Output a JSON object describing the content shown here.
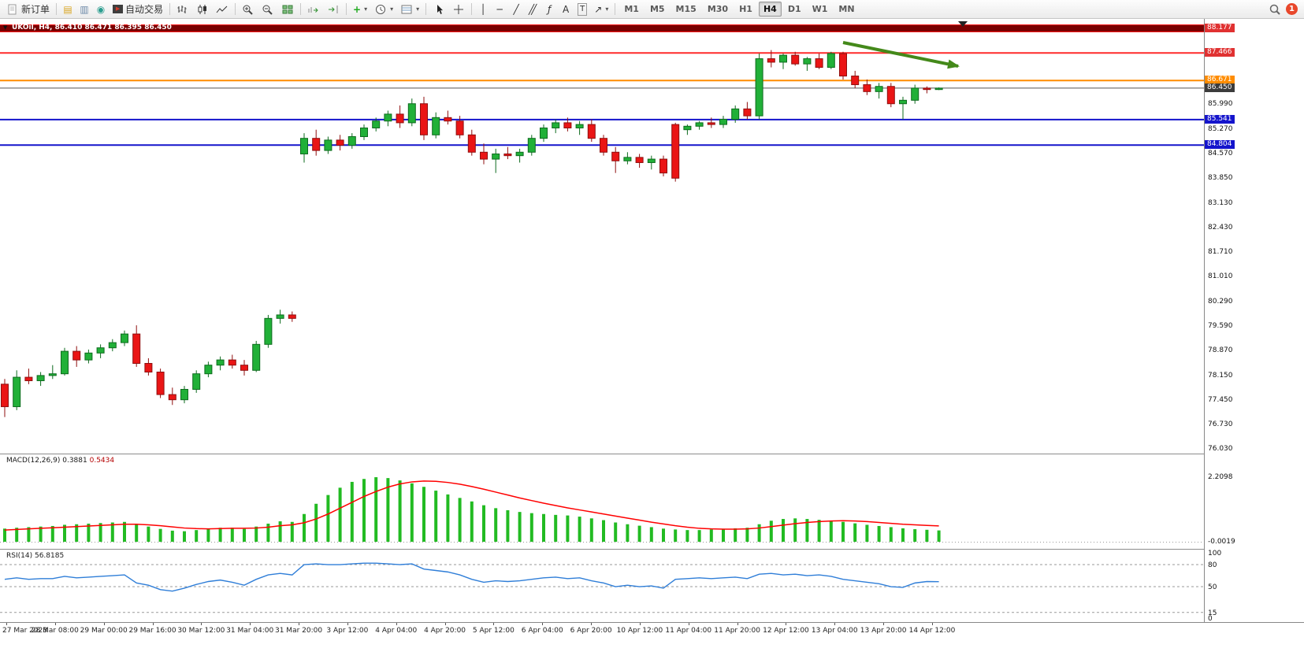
{
  "toolbar": {
    "new_order": "新订单",
    "autotrading": "自动交易",
    "timeframes": [
      "M1",
      "M5",
      "M15",
      "M30",
      "H1",
      "H4",
      "D1",
      "W1",
      "MN"
    ],
    "active_timeframe": "H4",
    "notification_count": "1",
    "icon_glyphs": {
      "market_watch": "▤",
      "navigator": "▥",
      "terminal": "◉",
      "autoplay": "▶",
      "indicator_plus": "+",
      "vline": "│",
      "hline": "─",
      "trendline": "╱",
      "channel": "╱╱",
      "fibonacci": "ƒ",
      "text": "A",
      "label": "T",
      "arrows": "↗",
      "caret": "▾",
      "band_caret": "▼"
    }
  },
  "chart": {
    "title": "UKOil, H4, 86.410 86.471 86.395 86.450",
    "symbol": "UKOil",
    "period": "H4",
    "ohlc": {
      "open": "86.410",
      "high": "86.471",
      "low": "86.395",
      "close": "86.450"
    }
  },
  "macd": {
    "label": "MACD(12,26,9)",
    "main": "0.3881",
    "signal": "0.5434",
    "axis": [
      "2.2098",
      "-0.0019"
    ]
  },
  "rsi": {
    "label": "RSI(14)",
    "value": "56.8185",
    "levels": [
      100,
      80,
      50,
      15,
      0
    ],
    "dashed_levels": [
      80,
      50,
      15
    ]
  },
  "colors": {
    "bull": "#21b038",
    "bull_edge": "#0e6b1e",
    "bear": "#ea1515",
    "bear_edge": "#8f0f0f",
    "macd_hist": "#22bb22",
    "macd_signal": "#ff0000",
    "rsi_line": "#2f7ed8",
    "arrow": "#44891a",
    "band": "#7a0101",
    "band_edge": "#ff1a1a"
  },
  "chart_data": {
    "type": "candlestick",
    "symbol": "UKOil",
    "timeframe": "H4",
    "price_axis_ticks": [
      "85.990",
      "85.270",
      "84.570",
      "83.850",
      "83.130",
      "82.430",
      "81.710",
      "81.010",
      "80.290",
      "79.590",
      "78.870",
      "78.150",
      "77.450",
      "76.730",
      "76.030"
    ],
    "hlines": [
      {
        "price": 88.177,
        "label": "88.177",
        "color": "#b30000",
        "label_bg": "#e03131",
        "style": "band"
      },
      {
        "price": 87.466,
        "label": "87.466",
        "color": "#ff2a2a",
        "label_bg": "#e03131",
        "style": "line"
      },
      {
        "price": 86.671,
        "label": "86.671",
        "color": "#ff8c00",
        "label_bg": "#ff8c00",
        "style": "line"
      },
      {
        "price": 86.45,
        "label": "86.450",
        "color": "#555555",
        "label_bg": "#3c3c3c",
        "style": "thin"
      },
      {
        "price": 85.541,
        "label": "85.541",
        "color": "#1414cc",
        "label_bg": "#1414cc",
        "style": "line"
      },
      {
        "price": 84.804,
        "label": "84.804",
        "color": "#1414cc",
        "label_bg": "#1414cc",
        "style": "line"
      }
    ],
    "time_labels": [
      "27 Mar 2023",
      "28 Mar 08:00",
      "29 Mar 00:00",
      "29 Mar 16:00",
      "30 Mar 12:00",
      "31 Mar 04:00",
      "31 Mar 20:00",
      "3 Apr 12:00",
      "4 Apr 04:00",
      "4 Apr 20:00",
      "5 Apr 12:00",
      "6 Apr 04:00",
      "6 Apr 20:00",
      "10 Apr 12:00",
      "11 Apr 04:00",
      "11 Apr 20:00",
      "12 Apr 12:00",
      "13 Apr 04:00",
      "13 Apr 20:00",
      "14 Apr 12:00"
    ],
    "candles": [
      [
        77.9,
        78.05,
        76.95,
        77.25
      ],
      [
        77.25,
        78.3,
        77.15,
        78.1
      ],
      [
        78.1,
        78.35,
        77.9,
        78.0
      ],
      [
        78.0,
        78.25,
        77.85,
        78.15
      ],
      [
        78.15,
        78.45,
        78.05,
        78.2
      ],
      [
        78.2,
        78.95,
        78.15,
        78.85
      ],
      [
        78.85,
        79.0,
        78.4,
        78.6
      ],
      [
        78.6,
        78.9,
        78.5,
        78.8
      ],
      [
        78.8,
        79.05,
        78.65,
        78.95
      ],
      [
        78.95,
        79.2,
        78.85,
        79.1
      ],
      [
        79.1,
        79.45,
        79.0,
        79.35
      ],
      [
        79.35,
        79.6,
        78.4,
        78.5
      ],
      [
        78.5,
        78.65,
        78.15,
        78.25
      ],
      [
        78.25,
        78.35,
        77.5,
        77.6
      ],
      [
        77.6,
        77.8,
        77.3,
        77.45
      ],
      [
        77.45,
        77.85,
        77.35,
        77.75
      ],
      [
        77.75,
        78.3,
        77.65,
        78.2
      ],
      [
        78.2,
        78.55,
        78.1,
        78.45
      ],
      [
        78.45,
        78.7,
        78.3,
        78.6
      ],
      [
        78.6,
        78.75,
        78.35,
        78.45
      ],
      [
        78.45,
        78.6,
        78.15,
        78.3
      ],
      [
        78.3,
        79.15,
        78.25,
        79.05
      ],
      [
        79.05,
        79.9,
        78.95,
        79.8
      ],
      [
        79.8,
        80.05,
        79.65,
        79.9
      ],
      [
        79.9,
        80.0,
        79.7,
        79.8
      ],
      [
        84.55,
        85.15,
        84.3,
        85.0
      ],
      [
        85.0,
        85.25,
        84.5,
        84.65
      ],
      [
        84.65,
        85.05,
        84.55,
        84.95
      ],
      [
        84.95,
        85.1,
        84.65,
        84.8
      ],
      [
        84.8,
        85.15,
        84.7,
        85.05
      ],
      [
        85.05,
        85.4,
        84.95,
        85.3
      ],
      [
        85.3,
        85.6,
        85.2,
        85.5
      ],
      [
        85.5,
        85.8,
        85.35,
        85.7
      ],
      [
        85.7,
        85.95,
        85.3,
        85.45
      ],
      [
        85.45,
        86.15,
        85.35,
        86.0
      ],
      [
        86.0,
        86.2,
        84.95,
        85.1
      ],
      [
        85.1,
        85.75,
        85.0,
        85.6
      ],
      [
        85.6,
        85.8,
        85.4,
        85.5
      ],
      [
        85.5,
        85.65,
        85.0,
        85.1
      ],
      [
        85.1,
        85.25,
        84.5,
        84.6
      ],
      [
        84.6,
        84.85,
        84.25,
        84.4
      ],
      [
        84.4,
        84.7,
        84.0,
        84.55
      ],
      [
        84.55,
        84.75,
        84.4,
        84.5
      ],
      [
        84.5,
        84.7,
        84.3,
        84.6
      ],
      [
        84.6,
        85.1,
        84.5,
        85.0
      ],
      [
        85.0,
        85.4,
        84.9,
        85.3
      ],
      [
        85.3,
        85.55,
        85.15,
        85.45
      ],
      [
        85.45,
        85.6,
        85.2,
        85.3
      ],
      [
        85.3,
        85.5,
        85.1,
        85.4
      ],
      [
        85.4,
        85.55,
        84.9,
        85.0
      ],
      [
        85.0,
        85.1,
        84.5,
        84.6
      ],
      [
        84.6,
        84.75,
        84.0,
        84.35
      ],
      [
        84.35,
        84.6,
        84.25,
        84.45
      ],
      [
        84.45,
        84.55,
        84.15,
        84.3
      ],
      [
        84.3,
        84.5,
        84.1,
        84.4
      ],
      [
        84.4,
        84.5,
        83.9,
        84.0
      ],
      [
        85.4,
        85.45,
        83.75,
        83.85
      ],
      [
        85.25,
        85.4,
        85.1,
        85.35
      ],
      [
        85.35,
        85.5,
        85.25,
        85.45
      ],
      [
        85.45,
        85.6,
        85.3,
        85.4
      ],
      [
        85.4,
        85.65,
        85.3,
        85.55
      ],
      [
        85.55,
        85.95,
        85.45,
        85.85
      ],
      [
        85.85,
        86.05,
        85.55,
        85.65
      ],
      [
        85.65,
        87.45,
        85.55,
        87.3
      ],
      [
        87.3,
        87.55,
        87.05,
        87.2
      ],
      [
        87.2,
        87.45,
        87.0,
        87.4
      ],
      [
        87.4,
        87.5,
        87.1,
        87.15
      ],
      [
        87.15,
        87.35,
        86.95,
        87.3
      ],
      [
        87.3,
        87.45,
        87.0,
        87.05
      ],
      [
        87.05,
        87.5,
        87.0,
        87.45
      ],
      [
        87.45,
        87.5,
        86.7,
        86.8
      ],
      [
        86.8,
        86.95,
        86.45,
        86.55
      ],
      [
        86.55,
        86.7,
        86.25,
        86.35
      ],
      [
        86.35,
        86.6,
        86.15,
        86.5
      ],
      [
        86.5,
        86.6,
        85.9,
        86.0
      ],
      [
        86.0,
        86.2,
        85.55,
        86.1
      ],
      [
        86.1,
        86.55,
        86.0,
        86.45
      ],
      [
        86.45,
        86.5,
        86.3,
        86.41
      ],
      [
        86.41,
        86.471,
        86.395,
        86.45
      ]
    ],
    "macd": {
      "histogram": [
        0.45,
        0.48,
        0.5,
        0.52,
        0.54,
        0.58,
        0.6,
        0.62,
        0.64,
        0.66,
        0.68,
        0.6,
        0.52,
        0.44,
        0.38,
        0.36,
        0.4,
        0.44,
        0.48,
        0.48,
        0.44,
        0.52,
        0.62,
        0.7,
        0.68,
        0.95,
        1.3,
        1.6,
        1.85,
        2.05,
        2.15,
        2.21,
        2.18,
        2.1,
        2.0,
        1.88,
        1.75,
        1.62,
        1.5,
        1.38,
        1.25,
        1.15,
        1.08,
        1.02,
        0.98,
        0.95,
        0.92,
        0.9,
        0.86,
        0.8,
        0.74,
        0.66,
        0.6,
        0.55,
        0.5,
        0.45,
        0.42,
        0.4,
        0.4,
        0.42,
        0.44,
        0.46,
        0.48,
        0.6,
        0.72,
        0.78,
        0.8,
        0.78,
        0.75,
        0.72,
        0.68,
        0.63,
        0.58,
        0.54,
        0.5,
        0.46,
        0.43,
        0.41,
        0.3881
      ],
      "signal": [
        0.4,
        0.42,
        0.44,
        0.46,
        0.48,
        0.5,
        0.52,
        0.54,
        0.56,
        0.58,
        0.6,
        0.6,
        0.58,
        0.55,
        0.51,
        0.47,
        0.45,
        0.44,
        0.45,
        0.46,
        0.46,
        0.47,
        0.5,
        0.55,
        0.58,
        0.65,
        0.78,
        0.95,
        1.15,
        1.35,
        1.55,
        1.72,
        1.87,
        1.98,
        2.05,
        2.08,
        2.07,
        2.03,
        1.97,
        1.89,
        1.8,
        1.7,
        1.6,
        1.5,
        1.41,
        1.32,
        1.24,
        1.16,
        1.09,
        1.02,
        0.95,
        0.88,
        0.81,
        0.74,
        0.67,
        0.61,
        0.55,
        0.5,
        0.46,
        0.44,
        0.43,
        0.43,
        0.44,
        0.47,
        0.52,
        0.57,
        0.62,
        0.66,
        0.69,
        0.71,
        0.72,
        0.71,
        0.69,
        0.66,
        0.63,
        0.6,
        0.58,
        0.56,
        0.5434
      ]
    },
    "rsi_values": [
      60,
      62,
      60,
      61,
      61,
      64,
      62,
      63,
      64,
      65,
      66,
      55,
      52,
      46,
      44,
      48,
      53,
      57,
      59,
      56,
      52,
      60,
      66,
      68,
      66,
      80,
      81,
      80,
      80,
      81,
      82,
      82,
      81,
      80,
      81,
      74,
      72,
      70,
      66,
      60,
      56,
      58,
      57,
      58,
      60,
      62,
      63,
      61,
      62,
      58,
      55,
      50,
      52,
      50,
      51,
      48,
      60,
      61,
      62,
      61,
      62,
      63,
      61,
      67,
      68,
      66,
      67,
      65,
      66,
      64,
      60,
      58,
      56,
      54,
      50,
      49,
      55,
      57,
      56.8
    ],
    "annotation_arrow": {
      "type": "arrow",
      "direction": "down-right",
      "color": "#44891a"
    }
  }
}
